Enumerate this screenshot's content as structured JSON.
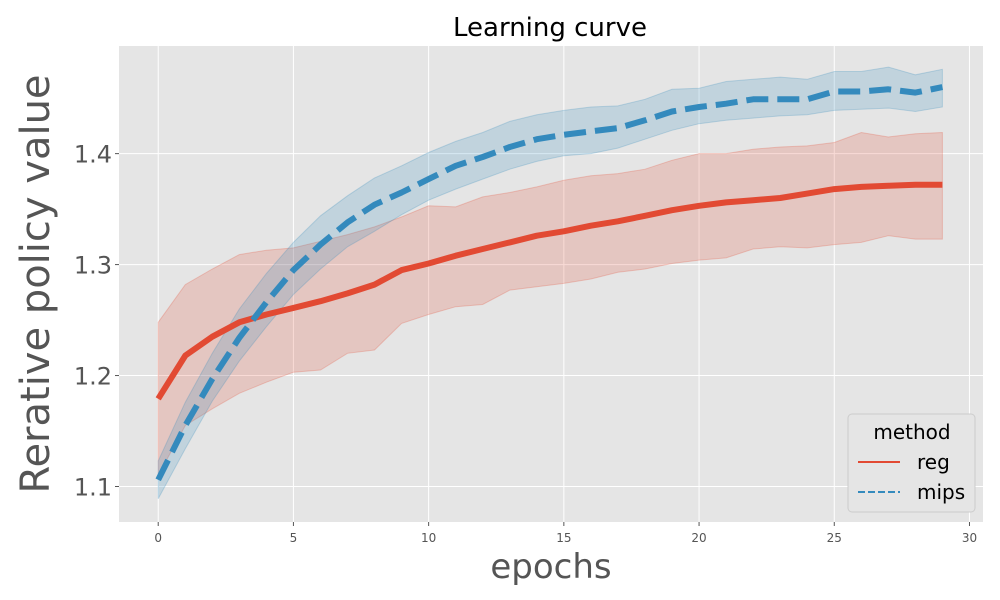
{
  "chart_data": {
    "type": "line",
    "title": "Learning curve",
    "xlabel": "epochs",
    "ylabel": "Rerative policy value",
    "xlim": [
      -1.45,
      30.5
    ],
    "ylim": [
      1.068,
      1.497
    ],
    "xticks": [
      0,
      5,
      10,
      15,
      20,
      25,
      30
    ],
    "yticks": [
      1.1,
      1.2,
      1.3,
      1.4
    ],
    "ytick_labels": [
      "1.1",
      "1.2",
      "1.3",
      "1.4"
    ],
    "grid": true,
    "background": "#e5e5e5",
    "legend": {
      "title": "method",
      "placement": "lower-right"
    },
    "x": [
      0,
      1,
      2,
      3,
      4,
      5,
      6,
      7,
      8,
      9,
      10,
      11,
      12,
      13,
      14,
      15,
      16,
      17,
      18,
      19,
      20,
      21,
      22,
      23,
      24,
      25,
      26,
      27,
      28,
      29
    ],
    "series": [
      {
        "name": "reg",
        "color": "#e24a33",
        "dash": "solid",
        "values": [
          1.179,
          1.218,
          1.235,
          1.248,
          1.255,
          1.261,
          1.267,
          1.274,
          1.282,
          1.295,
          1.301,
          1.308,
          1.314,
          1.32,
          1.326,
          1.33,
          1.335,
          1.339,
          1.344,
          1.349,
          1.353,
          1.356,
          1.358,
          1.36,
          1.364,
          1.368,
          1.37,
          1.371,
          1.372,
          1.372
        ],
        "lower": [
          1.11,
          1.155,
          1.17,
          1.184,
          1.194,
          1.203,
          1.205,
          1.22,
          1.223,
          1.247,
          1.255,
          1.262,
          1.264,
          1.277,
          1.28,
          1.283,
          1.287,
          1.293,
          1.296,
          1.301,
          1.304,
          1.306,
          1.314,
          1.316,
          1.315,
          1.318,
          1.32,
          1.326,
          1.323,
          1.323
        ],
        "upper": [
          1.248,
          1.282,
          1.296,
          1.309,
          1.313,
          1.315,
          1.321,
          1.327,
          1.334,
          1.343,
          1.353,
          1.352,
          1.361,
          1.365,
          1.37,
          1.376,
          1.38,
          1.382,
          1.386,
          1.394,
          1.4,
          1.4,
          1.404,
          1.406,
          1.407,
          1.41,
          1.419,
          1.415,
          1.418,
          1.419
        ]
      },
      {
        "name": "mips",
        "color": "#348abd",
        "dash": "dashed",
        "values": [
          1.106,
          1.155,
          1.197,
          1.234,
          1.266,
          1.295,
          1.318,
          1.338,
          1.354,
          1.365,
          1.377,
          1.389,
          1.397,
          1.406,
          1.413,
          1.417,
          1.42,
          1.423,
          1.43,
          1.438,
          1.442,
          1.445,
          1.449,
          1.449,
          1.449,
          1.456,
          1.456,
          1.458,
          1.455,
          1.46
        ],
        "lower": [
          1.089,
          1.134,
          1.177,
          1.213,
          1.244,
          1.273,
          1.296,
          1.316,
          1.33,
          1.345,
          1.358,
          1.368,
          1.377,
          1.386,
          1.393,
          1.398,
          1.4,
          1.405,
          1.413,
          1.421,
          1.427,
          1.43,
          1.432,
          1.434,
          1.435,
          1.439,
          1.44,
          1.441,
          1.438,
          1.442
        ],
        "upper": [
          1.123,
          1.176,
          1.22,
          1.26,
          1.292,
          1.32,
          1.344,
          1.362,
          1.378,
          1.389,
          1.401,
          1.411,
          1.419,
          1.429,
          1.435,
          1.439,
          1.442,
          1.443,
          1.449,
          1.458,
          1.459,
          1.465,
          1.467,
          1.469,
          1.467,
          1.474,
          1.474,
          1.478,
          1.471,
          1.476
        ]
      }
    ]
  }
}
